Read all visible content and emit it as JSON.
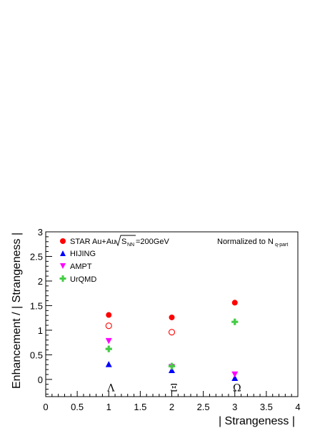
{
  "chart_data": {
    "type": "scatter",
    "xlabel": "| Strangeness |",
    "ylabel": "Enhancement / | Strangeness |",
    "xlim": [
      0,
      4
    ],
    "ylim": [
      -0.35,
      3
    ],
    "x_ticks": [
      "0",
      "0.5",
      "1",
      "1.5",
      "2",
      "2.5",
      "3",
      "3.5",
      "4"
    ],
    "y_ticks": [
      "0",
      "0.5",
      "1",
      "1.5",
      "2",
      "2.5",
      "3"
    ],
    "grid": false,
    "legend_position": "top-left",
    "legend": {
      "star_prefix": "STAR Au+Au",
      "star_sqrt_s": "S",
      "star_sqrt_sub": "NN",
      "star_energy": "=200GeV"
    },
    "annotation": {
      "text": "Normalized to N",
      "subscript": "q-part"
    },
    "particle_labels": [
      {
        "x": 1,
        "label": "Λ"
      },
      {
        "x": 2,
        "label": "Ξ"
      },
      {
        "x": 3,
        "label": "Ω"
      }
    ],
    "series": [
      {
        "name": "STAR Au+Au",
        "marker": "filled-circle",
        "color": "#ff0000",
        "points": [
          {
            "x": 1,
            "y": 1.31
          },
          {
            "x": 2,
            "y": 1.26
          },
          {
            "x": 3,
            "y": 1.56
          }
        ]
      },
      {
        "name": "",
        "marker": "open-circle",
        "color": "#ff0000",
        "points": [
          {
            "x": 1,
            "y": 1.09
          },
          {
            "x": 2,
            "y": 0.96
          }
        ]
      },
      {
        "name": "HIJING",
        "marker": "triangle-up",
        "color": "#0000ff",
        "points": [
          {
            "x": 1,
            "y": 0.3
          },
          {
            "x": 2,
            "y": 0.18
          },
          {
            "x": 3,
            "y": 0.02
          }
        ]
      },
      {
        "name": "AMPT",
        "marker": "triangle-down",
        "color": "#ff00ff",
        "points": [
          {
            "x": 1,
            "y": 0.79
          },
          {
            "x": 2,
            "y": 0.26
          },
          {
            "x": 3,
            "y": 0.11
          }
        ]
      },
      {
        "name": "UrQMD",
        "marker": "cross",
        "color": "#44cc44",
        "points": [
          {
            "x": 1,
            "y": 0.62
          },
          {
            "x": 2,
            "y": 0.27
          },
          {
            "x": 3,
            "y": 1.17
          }
        ]
      }
    ]
  }
}
